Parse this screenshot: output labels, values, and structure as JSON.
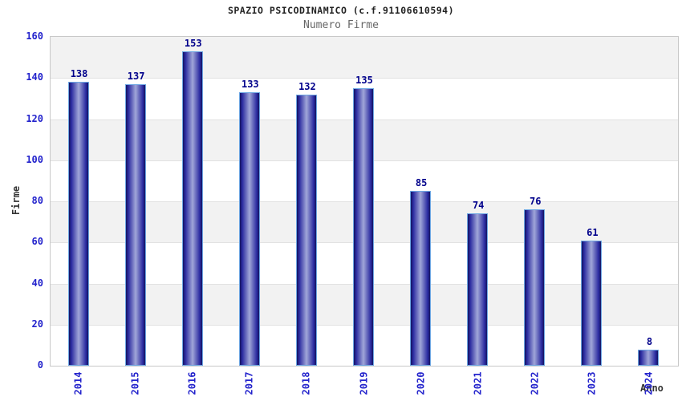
{
  "chart_data": {
    "type": "bar",
    "title": "SPAZIO PSICODINAMICO (c.f.91106610594)",
    "subtitle": "Numero Firme",
    "xlabel": "Anno",
    "ylabel": "Firme",
    "categories": [
      "2014",
      "2015",
      "2016",
      "2017",
      "2018",
      "2019",
      "2020",
      "2021",
      "2022",
      "2023",
      "2024"
    ],
    "values": [
      138,
      137,
      153,
      133,
      132,
      135,
      85,
      74,
      76,
      61,
      8
    ],
    "yticks": [
      0,
      20,
      40,
      60,
      80,
      100,
      120,
      140,
      160
    ],
    "ylim": [
      0,
      160
    ],
    "ytick_step": 20,
    "grid": true,
    "legend": false,
    "background_bands": true,
    "colors": {
      "title": "#222222",
      "subtitle": "#666666",
      "axis_tick_label": "#2323cc",
      "bar_value_label": "#00008b",
      "bar_edge": "#14145f",
      "bar_mid": "#2a2aa0",
      "bar_center": "#a0a6d8",
      "bar_border": "#6ea7e3",
      "band_gray": "#f2f2f2",
      "band_white": "#ffffff",
      "grid_line": "#e2e2e2",
      "plot_border": "#c8c8c8",
      "axis_title": "#333333"
    }
  }
}
